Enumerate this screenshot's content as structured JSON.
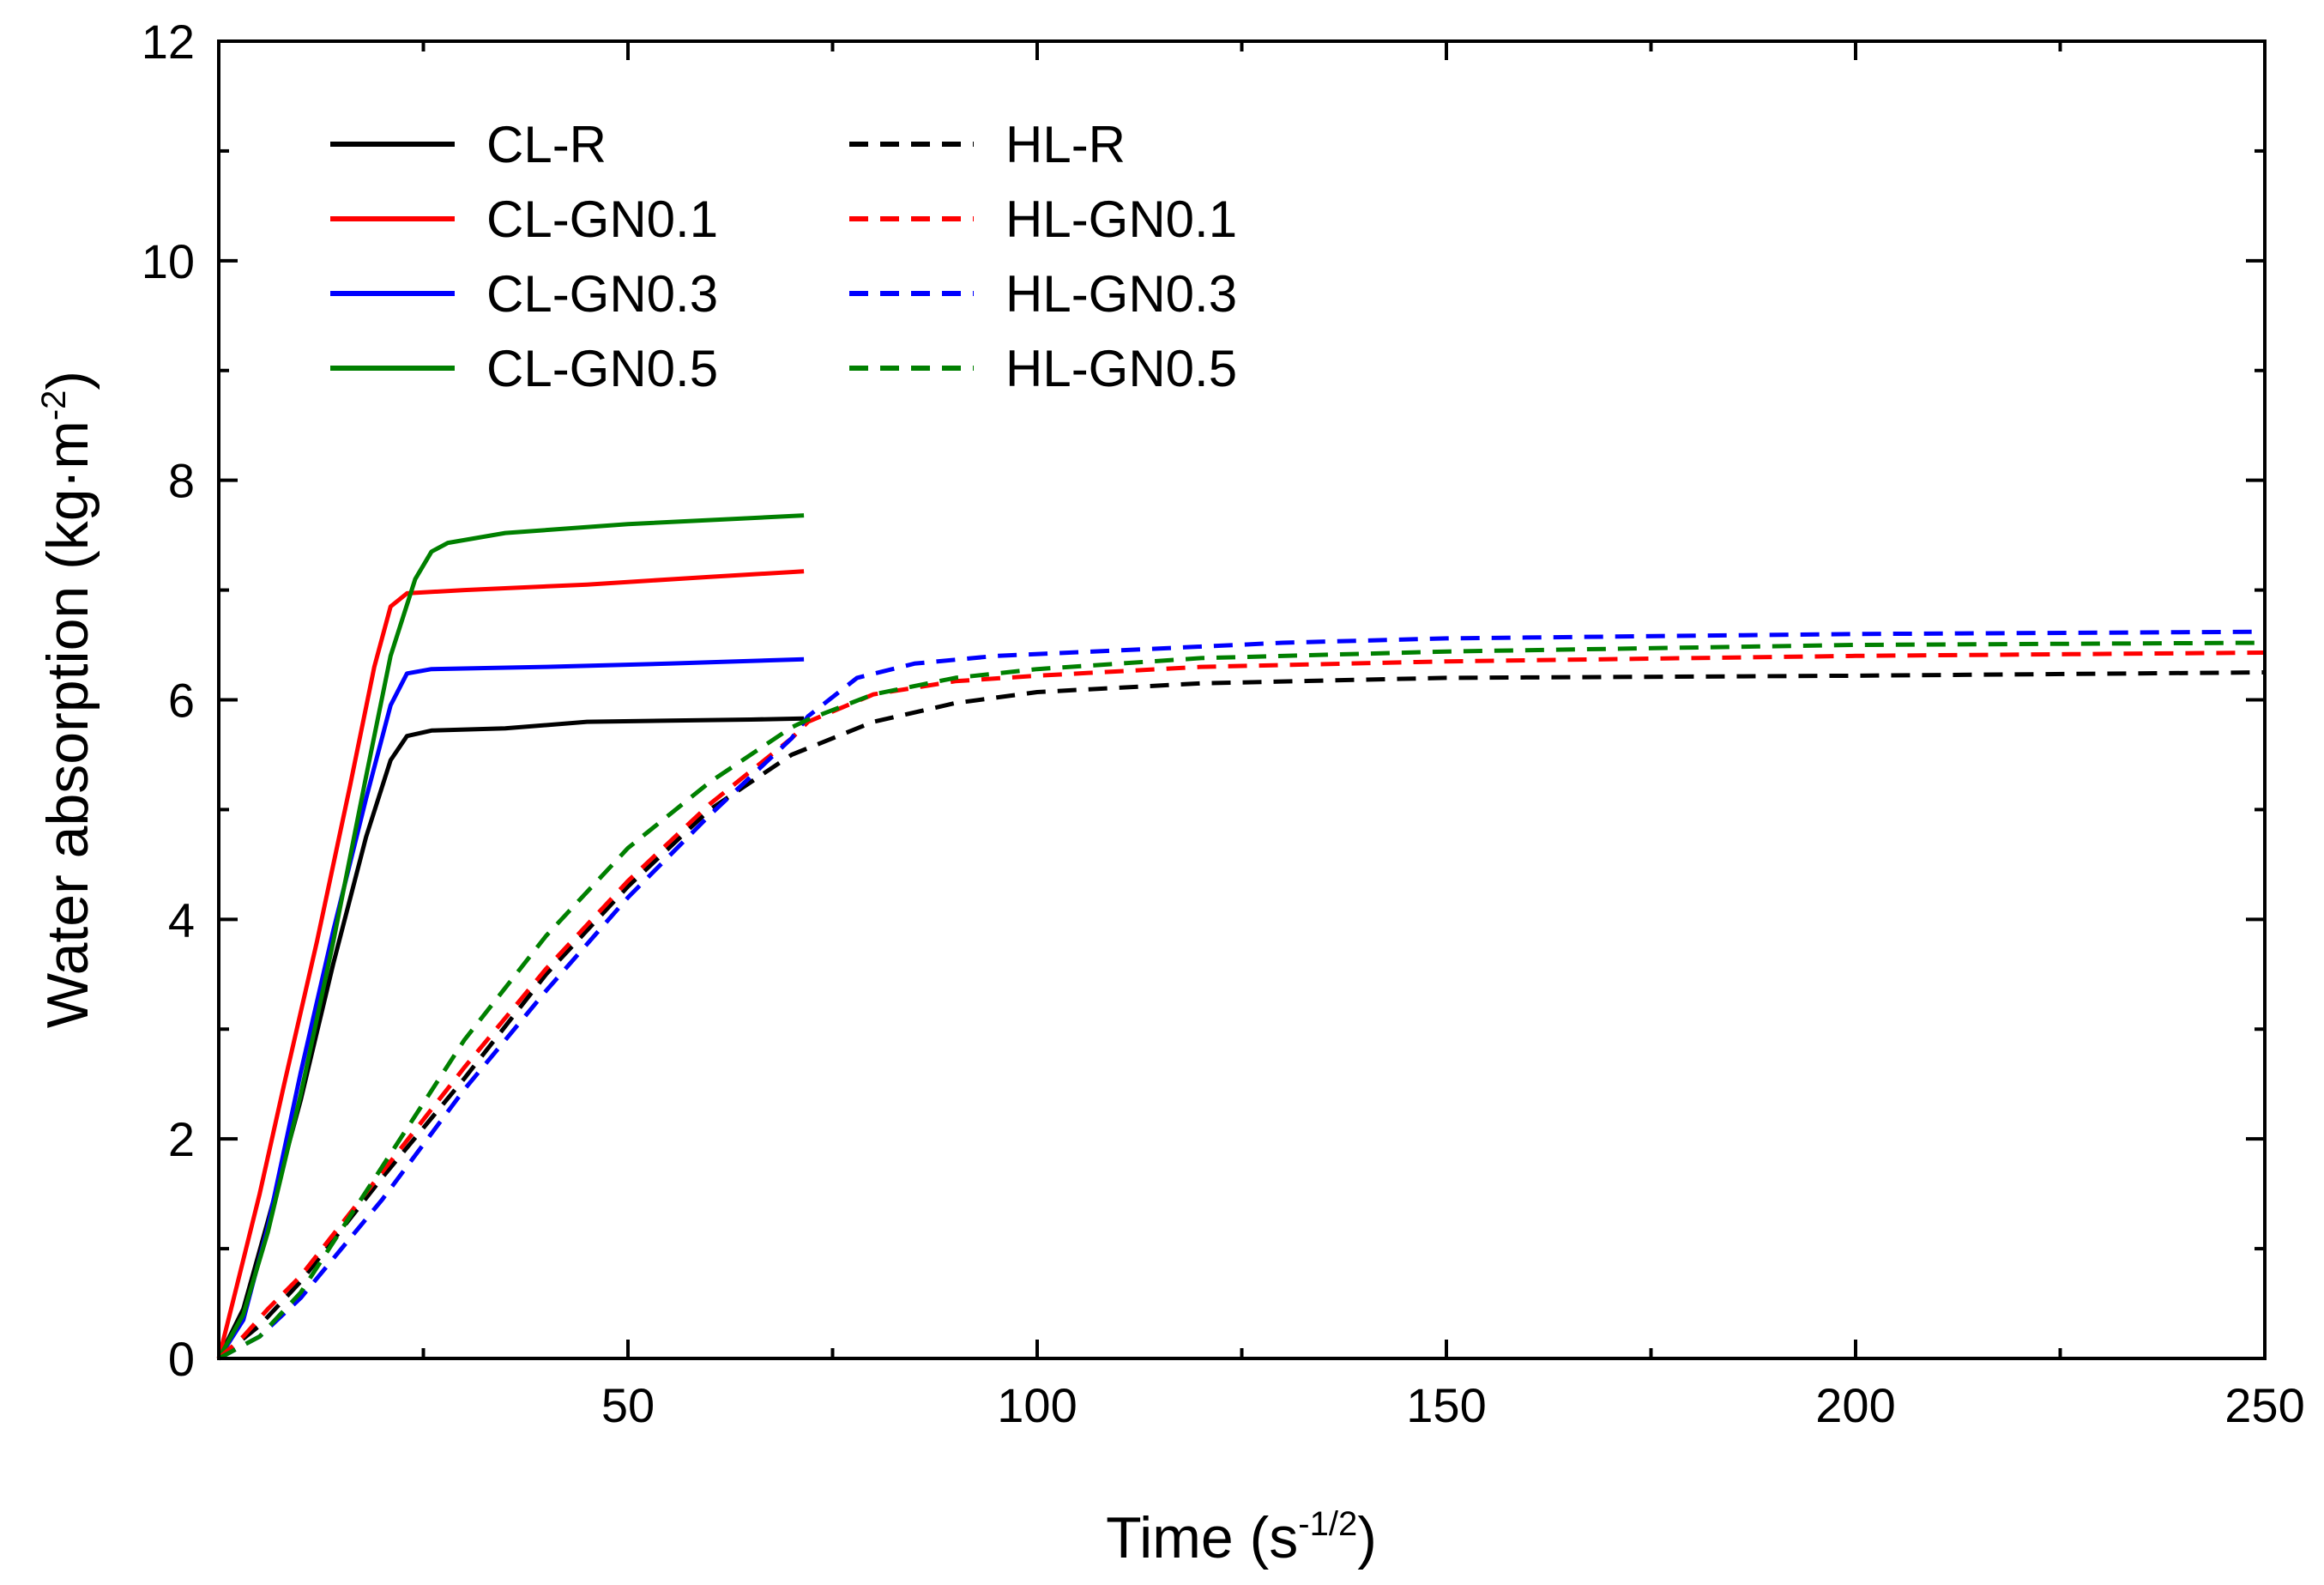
{
  "chart_data": {
    "type": "line",
    "xlabel": "Time (s",
    "xlabel_sup": "-1/2",
    "xlabel_end": ")",
    "ylabel": "Water absorption (kg·m",
    "ylabel_sup": "-2",
    "ylabel_end": ")",
    "xlim": [
      0,
      250
    ],
    "ylim": [
      0,
      12
    ],
    "xticks": [
      50,
      100,
      150,
      200,
      250
    ],
    "yticks": [
      0,
      2,
      4,
      6,
      8,
      10,
      12
    ],
    "xtick_labels": [
      "50",
      "100",
      "150",
      "200",
      "250"
    ],
    "ytick_labels": [
      "0",
      "2",
      "4",
      "6",
      "8",
      "10",
      "12"
    ],
    "grid": false,
    "legend_position": "top-left",
    "series": [
      {
        "name": "CL-R",
        "color": "#000000",
        "dash": false,
        "points": [
          [
            0,
            0
          ],
          [
            3,
            0.45
          ],
          [
            6,
            1.25
          ],
          [
            10,
            2.35
          ],
          [
            14,
            3.6
          ],
          [
            18,
            4.75
          ],
          [
            21,
            5.45
          ],
          [
            23,
            5.67
          ],
          [
            26,
            5.72
          ],
          [
            35,
            5.74
          ],
          [
            45,
            5.8
          ],
          [
            55,
            5.81
          ],
          [
            65,
            5.82
          ],
          [
            71.5,
            5.83
          ]
        ]
      },
      {
        "name": "CL-GN0.1",
        "color": "#ff0000",
        "dash": false,
        "points": [
          [
            0,
            0
          ],
          [
            2,
            0.6
          ],
          [
            5,
            1.5
          ],
          [
            8,
            2.5
          ],
          [
            12,
            3.8
          ],
          [
            16,
            5.2
          ],
          [
            19,
            6.3
          ],
          [
            21,
            6.85
          ],
          [
            23,
            6.97
          ],
          [
            30,
            7.0
          ],
          [
            45,
            7.05
          ],
          [
            60,
            7.12
          ],
          [
            71.5,
            7.17
          ]
        ]
      },
      {
        "name": "CL-GN0.3",
        "color": "#0000ff",
        "dash": false,
        "points": [
          [
            0,
            0
          ],
          [
            3,
            0.35
          ],
          [
            6,
            1.2
          ],
          [
            10,
            2.6
          ],
          [
            14,
            3.9
          ],
          [
            18,
            5.1
          ],
          [
            21,
            5.95
          ],
          [
            23,
            6.24
          ],
          [
            26,
            6.28
          ],
          [
            40,
            6.3
          ],
          [
            55,
            6.33
          ],
          [
            71.5,
            6.37
          ]
        ]
      },
      {
        "name": "CL-GN0.5",
        "color": "#008000",
        "dash": false,
        "points": [
          [
            0,
            0
          ],
          [
            3,
            0.4
          ],
          [
            6,
            1.15
          ],
          [
            10,
            2.4
          ],
          [
            14,
            3.8
          ],
          [
            18,
            5.3
          ],
          [
            21,
            6.4
          ],
          [
            24,
            7.1
          ],
          [
            26,
            7.35
          ],
          [
            28,
            7.43
          ],
          [
            35,
            7.52
          ],
          [
            50,
            7.6
          ],
          [
            71.5,
            7.68
          ]
        ]
      },
      {
        "name": "HL-R",
        "color": "#000000",
        "dash": true,
        "points": [
          [
            0,
            0
          ],
          [
            5,
            0.3
          ],
          [
            10,
            0.7
          ],
          [
            20,
            1.65
          ],
          [
            30,
            2.55
          ],
          [
            40,
            3.5
          ],
          [
            50,
            4.3
          ],
          [
            60,
            5.0
          ],
          [
            70,
            5.5
          ],
          [
            80,
            5.8
          ],
          [
            90,
            5.97
          ],
          [
            100,
            6.07
          ],
          [
            120,
            6.15
          ],
          [
            150,
            6.2
          ],
          [
            200,
            6.22
          ],
          [
            250,
            6.25
          ]
        ]
      },
      {
        "name": "HL-GN0.1",
        "color": "#ff0000",
        "dash": true,
        "points": [
          [
            0,
            0
          ],
          [
            3,
            0.2
          ],
          [
            6,
            0.45
          ],
          [
            10,
            0.75
          ],
          [
            20,
            1.7
          ],
          [
            30,
            2.65
          ],
          [
            40,
            3.55
          ],
          [
            50,
            4.35
          ],
          [
            60,
            5.05
          ],
          [
            70,
            5.65
          ],
          [
            72,
            5.8
          ],
          [
            80,
            6.05
          ],
          [
            90,
            6.17
          ],
          [
            100,
            6.22
          ],
          [
            120,
            6.3
          ],
          [
            150,
            6.35
          ],
          [
            200,
            6.4
          ],
          [
            250,
            6.43
          ]
        ]
      },
      {
        "name": "HL-GN0.3",
        "color": "#0000ff",
        "dash": true,
        "points": [
          [
            0,
            0
          ],
          [
            5,
            0.2
          ],
          [
            10,
            0.55
          ],
          [
            20,
            1.45
          ],
          [
            30,
            2.45
          ],
          [
            40,
            3.35
          ],
          [
            50,
            4.2
          ],
          [
            60,
            4.95
          ],
          [
            70,
            5.65
          ],
          [
            72,
            5.85
          ],
          [
            78,
            6.2
          ],
          [
            85,
            6.33
          ],
          [
            95,
            6.4
          ],
          [
            110,
            6.45
          ],
          [
            130,
            6.52
          ],
          [
            150,
            6.56
          ],
          [
            200,
            6.6
          ],
          [
            250,
            6.62
          ]
        ]
      },
      {
        "name": "HL-GN0.5",
        "color": "#008000",
        "dash": true,
        "points": [
          [
            0,
            0
          ],
          [
            5,
            0.2
          ],
          [
            10,
            0.6
          ],
          [
            20,
            1.75
          ],
          [
            30,
            2.9
          ],
          [
            40,
            3.85
          ],
          [
            50,
            4.65
          ],
          [
            60,
            5.25
          ],
          [
            70,
            5.75
          ],
          [
            72,
            5.82
          ],
          [
            80,
            6.05
          ],
          [
            90,
            6.2
          ],
          [
            100,
            6.28
          ],
          [
            120,
            6.38
          ],
          [
            150,
            6.44
          ],
          [
            200,
            6.5
          ],
          [
            250,
            6.52
          ]
        ]
      }
    ]
  }
}
